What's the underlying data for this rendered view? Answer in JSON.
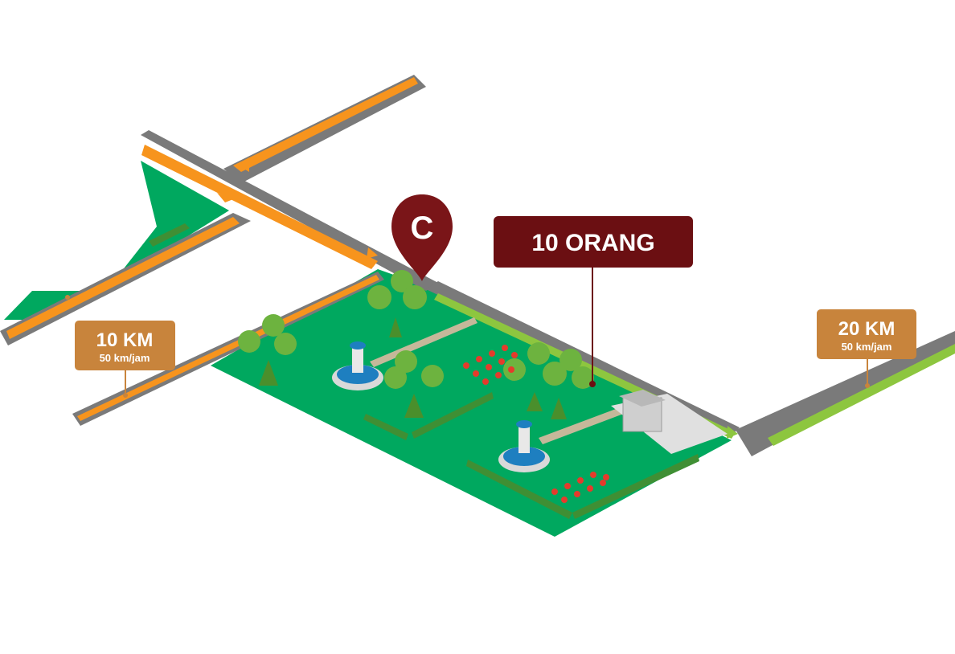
{
  "marker": {
    "letter": "C",
    "color": "#7a1518"
  },
  "callout": {
    "text": "10 ORANG",
    "color": "#6b0f12"
  },
  "signs": [
    {
      "distance": "10 KM",
      "speed": "50 km/jam"
    },
    {
      "distance": "20 KM",
      "speed": "50 km/jam"
    }
  ],
  "colors": {
    "grass": "#00a85f",
    "road": "#7a7a7a",
    "road_edge": "#5c5c5c",
    "lane_orange": "#f7941d",
    "lane_green": "#8dc63f",
    "sign": "#c8843c",
    "tree": "#6db33f",
    "fountain_water": "#1e7fc0",
    "flowers": "#e53b2c"
  }
}
